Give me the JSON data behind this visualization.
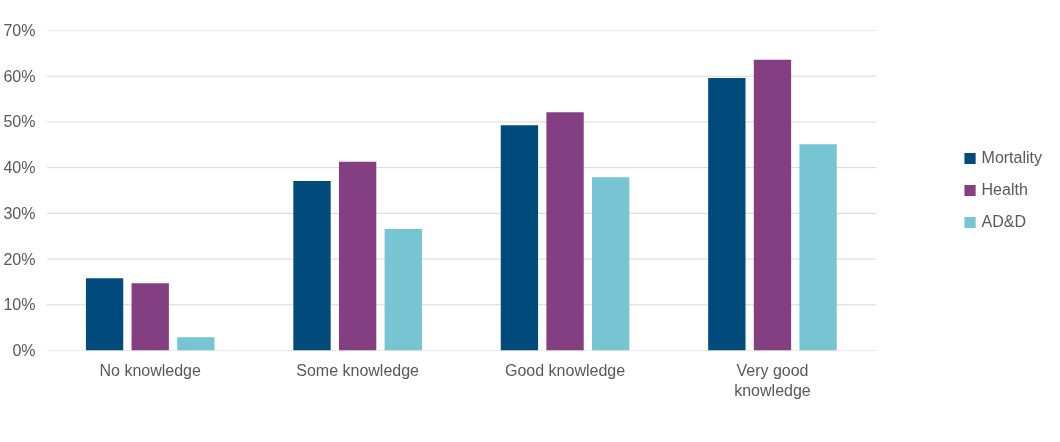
{
  "chart_data": {
    "type": "bar",
    "categories": [
      "No knowledge",
      "Some knowledge",
      "Good knowledge",
      "Very good knowledge"
    ],
    "series": [
      {
        "name": "Mortality",
        "color": "#004a7c",
        "values": [
          15.8,
          37.1,
          49.3,
          59.6
        ]
      },
      {
        "name": "Health",
        "color": "#833f82",
        "values": [
          14.7,
          41.3,
          52.1,
          63.6
        ]
      },
      {
        "name": "AD&D",
        "color": "#77c4d3",
        "values": [
          2.9,
          26.6,
          37.9,
          45.1
        ]
      }
    ],
    "ylim": [
      0,
      70
    ],
    "yticks": [
      {
        "value": 0,
        "label": "0%"
      },
      {
        "value": 10,
        "label": "10%"
      },
      {
        "value": 20,
        "label": "20%"
      },
      {
        "value": 30,
        "label": "30%"
      },
      {
        "value": 40,
        "label": "40%"
      },
      {
        "value": 50,
        "label": "50%"
      },
      {
        "value": 60,
        "label": "60%"
      },
      {
        "value": 70,
        "label": "70%"
      }
    ],
    "grid": "y",
    "legend": "right"
  }
}
